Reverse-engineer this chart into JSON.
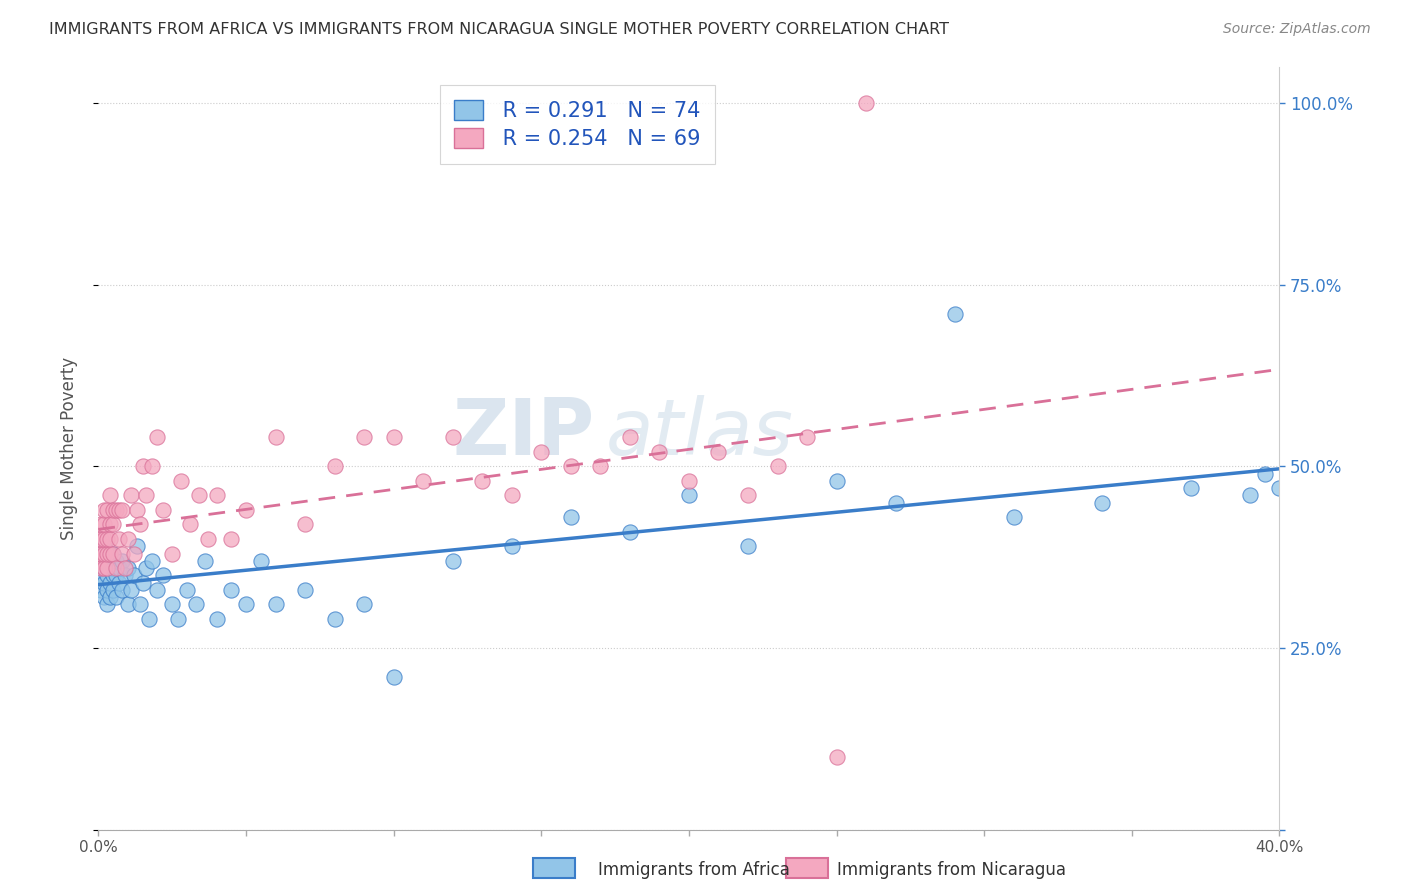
{
  "title": "IMMIGRANTS FROM AFRICA VS IMMIGRANTS FROM NICARAGUA SINGLE MOTHER POVERTY CORRELATION CHART",
  "source": "Source: ZipAtlas.com",
  "ylabel": "Single Mother Poverty",
  "xlim": [
    0.0,
    0.4
  ],
  "ylim": [
    0.0,
    1.05
  ],
  "xticks": [
    0.0,
    0.1,
    0.2,
    0.3,
    0.4
  ],
  "xticklabels": [
    "0.0%",
    "",
    "",
    "",
    "40.0%"
  ],
  "yticks_right": [
    0.25,
    0.5,
    0.75,
    1.0
  ],
  "yticklabels_right": [
    "25.0%",
    "50.0%",
    "75.0%",
    "100.0%"
  ],
  "legend_r1": "R = 0.291",
  "legend_n1": "N = 74",
  "legend_r2": "R = 0.254",
  "legend_n2": "N = 69",
  "color_blue": "#92C5E8",
  "color_pink": "#F4A8C0",
  "line_blue": "#3A7DC9",
  "line_pink": "#D97098",
  "watermark_zip": "ZIP",
  "watermark_atlas": "atlas",
  "africa_x": [
    0.0,
    0.0,
    0.0,
    0.001,
    0.001,
    0.001,
    0.001,
    0.002,
    0.002,
    0.002,
    0.002,
    0.002,
    0.003,
    0.003,
    0.003,
    0.003,
    0.003,
    0.004,
    0.004,
    0.004,
    0.004,
    0.005,
    0.005,
    0.005,
    0.005,
    0.006,
    0.006,
    0.006,
    0.007,
    0.007,
    0.008,
    0.008,
    0.009,
    0.01,
    0.01,
    0.011,
    0.012,
    0.013,
    0.014,
    0.015,
    0.016,
    0.017,
    0.018,
    0.02,
    0.022,
    0.025,
    0.027,
    0.03,
    0.033,
    0.036,
    0.04,
    0.045,
    0.05,
    0.055,
    0.06,
    0.07,
    0.08,
    0.09,
    0.1,
    0.12,
    0.14,
    0.16,
    0.18,
    0.2,
    0.22,
    0.25,
    0.27,
    0.29,
    0.31,
    0.34,
    0.37,
    0.39,
    0.395,
    0.4
  ],
  "africa_y": [
    0.35,
    0.37,
    0.38,
    0.33,
    0.35,
    0.37,
    0.38,
    0.32,
    0.34,
    0.36,
    0.37,
    0.39,
    0.31,
    0.33,
    0.35,
    0.37,
    0.38,
    0.32,
    0.34,
    0.36,
    0.38,
    0.33,
    0.35,
    0.36,
    0.38,
    0.32,
    0.35,
    0.37,
    0.34,
    0.36,
    0.33,
    0.37,
    0.35,
    0.31,
    0.36,
    0.33,
    0.35,
    0.39,
    0.31,
    0.34,
    0.36,
    0.29,
    0.37,
    0.33,
    0.35,
    0.31,
    0.29,
    0.33,
    0.31,
    0.37,
    0.29,
    0.33,
    0.31,
    0.37,
    0.31,
    0.33,
    0.29,
    0.31,
    0.21,
    0.37,
    0.39,
    0.43,
    0.41,
    0.46,
    0.39,
    0.48,
    0.45,
    0.71,
    0.43,
    0.45,
    0.47,
    0.46,
    0.49,
    0.47
  ],
  "nicaragua_x": [
    0.0,
    0.0,
    0.0,
    0.001,
    0.001,
    0.001,
    0.001,
    0.002,
    0.002,
    0.002,
    0.002,
    0.002,
    0.003,
    0.003,
    0.003,
    0.003,
    0.004,
    0.004,
    0.004,
    0.004,
    0.005,
    0.005,
    0.005,
    0.006,
    0.006,
    0.007,
    0.007,
    0.008,
    0.008,
    0.009,
    0.01,
    0.011,
    0.012,
    0.013,
    0.014,
    0.015,
    0.016,
    0.018,
    0.02,
    0.022,
    0.025,
    0.028,
    0.031,
    0.034,
    0.037,
    0.04,
    0.045,
    0.05,
    0.06,
    0.07,
    0.08,
    0.09,
    0.1,
    0.11,
    0.12,
    0.13,
    0.14,
    0.15,
    0.16,
    0.17,
    0.18,
    0.19,
    0.2,
    0.21,
    0.22,
    0.23,
    0.24,
    0.25,
    0.26
  ],
  "nicaragua_y": [
    0.37,
    0.38,
    0.4,
    0.36,
    0.38,
    0.4,
    0.42,
    0.36,
    0.38,
    0.4,
    0.42,
    0.44,
    0.36,
    0.38,
    0.4,
    0.44,
    0.38,
    0.4,
    0.42,
    0.46,
    0.38,
    0.42,
    0.44,
    0.36,
    0.44,
    0.4,
    0.44,
    0.38,
    0.44,
    0.36,
    0.4,
    0.46,
    0.38,
    0.44,
    0.42,
    0.5,
    0.46,
    0.5,
    0.54,
    0.44,
    0.38,
    0.48,
    0.42,
    0.46,
    0.4,
    0.46,
    0.4,
    0.44,
    0.54,
    0.42,
    0.5,
    0.54,
    0.54,
    0.48,
    0.54,
    0.48,
    0.46,
    0.52,
    0.5,
    0.5,
    0.54,
    0.52,
    0.48,
    0.52,
    0.46,
    0.5,
    0.54,
    0.1,
    1.0
  ]
}
